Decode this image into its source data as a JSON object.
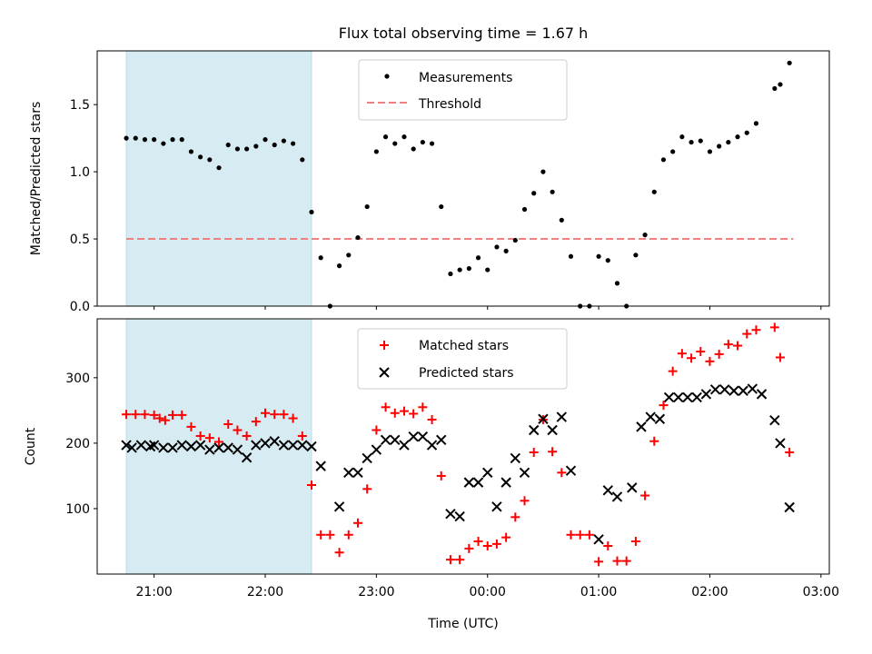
{
  "chart_data": [
    {
      "type": "scatter",
      "title": "Flux total observing time = 1.67 h",
      "ylabel": "Matched/Predicted stars",
      "xlim": [
        "20:30",
        "03:00"
      ],
      "ylim": [
        0,
        1.9
      ],
      "yticks": [
        "0.0",
        "0.5",
        "1.0",
        "1.5"
      ],
      "grid": false,
      "legend_position": "upper-center",
      "shaded_span": {
        "start": "20:45",
        "end": "22:25",
        "color": "#add8e6"
      },
      "series": [
        {
          "name": "Measurements",
          "marker": "dot",
          "color": "#000000",
          "x": [
            "20:45",
            "20:50",
            "20:55",
            "21:00",
            "21:05",
            "21:10",
            "21:15",
            "21:20",
            "21:25",
            "21:30",
            "21:35",
            "21:40",
            "21:45",
            "21:50",
            "21:55",
            "22:00",
            "22:05",
            "22:10",
            "22:15",
            "22:20",
            "22:25",
            "22:30",
            "22:35",
            "22:40",
            "22:45",
            "22:50",
            "22:55",
            "23:00",
            "23:05",
            "23:10",
            "23:15",
            "23:20",
            "23:25",
            "23:30",
            "23:35",
            "23:40",
            "23:45",
            "23:50",
            "23:55",
            "24:00",
            "24:05",
            "24:10",
            "24:15",
            "24:20",
            "24:25",
            "24:30",
            "24:35",
            "24:40",
            "24:45",
            "24:50",
            "24:55",
            "25:00",
            "25:05",
            "25:10",
            "25:15",
            "25:20",
            "25:25",
            "25:30",
            "25:35",
            "25:40",
            "25:45",
            "25:50",
            "25:55",
            "26:00",
            "26:05",
            "26:10",
            "26:15",
            "26:20",
            "26:25",
            "26:35",
            "26:38",
            "26:43"
          ],
          "y": [
            1.25,
            1.25,
            1.24,
            1.24,
            1.21,
            1.24,
            1.24,
            1.15,
            1.11,
            1.09,
            1.03,
            1.2,
            1.17,
            1.17,
            1.19,
            1.24,
            1.2,
            1.23,
            1.21,
            1.09,
            0.7,
            0.36,
            0.0,
            0.3,
            0.38,
            0.51,
            0.74,
            1.15,
            1.26,
            1.21,
            1.26,
            1.17,
            1.22,
            1.21,
            0.74,
            0.24,
            0.27,
            0.28,
            0.36,
            0.27,
            0.44,
            0.41,
            0.49,
            0.72,
            0.84,
            1.0,
            0.85,
            0.64,
            0.37,
            0.0,
            0.0,
            0.37,
            0.34,
            0.17,
            0.0,
            0.38,
            0.53,
            0.85,
            1.09,
            1.15,
            1.26,
            1.22,
            1.23,
            1.15,
            1.19,
            1.22,
            1.26,
            1.29,
            1.36,
            1.62,
            1.65,
            1.81
          ]
        },
        {
          "name": "Threshold",
          "style": "dashed",
          "color": "#f08080",
          "x": [
            "20:45",
            "26:45"
          ],
          "y": [
            0.5,
            0.5
          ]
        }
      ]
    },
    {
      "type": "scatter",
      "xlabel": "Time (UTC)",
      "ylabel": "Count",
      "xlim": [
        "20:30",
        "03:00"
      ],
      "ylim": [
        0,
        390
      ],
      "yticks": [
        "100",
        "200",
        "300"
      ],
      "xticks": [
        "21:00",
        "22:00",
        "23:00",
        "00:00",
        "01:00",
        "02:00",
        "03:00"
      ],
      "grid": false,
      "legend_position": "upper-center",
      "shaded_span": {
        "start": "20:45",
        "end": "22:25",
        "color": "#add8e6"
      },
      "series": [
        {
          "name": "Matched stars",
          "marker": "plus",
          "color": "#ff0000",
          "x": [
            "20:45",
            "20:50",
            "20:55",
            "21:00",
            "21:03",
            "21:06",
            "21:10",
            "21:15",
            "21:20",
            "21:25",
            "21:30",
            "21:35",
            "21:40",
            "21:45",
            "21:50",
            "21:55",
            "22:00",
            "22:05",
            "22:10",
            "22:15",
            "22:20",
            "22:25",
            "22:30",
            "22:35",
            "22:40",
            "22:45",
            "22:50",
            "22:55",
            "23:00",
            "23:05",
            "23:10",
            "23:15",
            "23:20",
            "23:25",
            "23:30",
            "23:35",
            "23:40",
            "23:45",
            "23:50",
            "23:55",
            "24:00",
            "24:05",
            "24:10",
            "24:15",
            "24:20",
            "24:25",
            "24:30",
            "24:35",
            "24:40",
            "24:45",
            "24:50",
            "24:55",
            "25:00",
            "25:05",
            "25:10",
            "25:15",
            "25:20",
            "25:25",
            "25:30",
            "25:35",
            "25:40",
            "25:45",
            "25:50",
            "25:55",
            "26:00",
            "26:05",
            "26:10",
            "26:15",
            "26:20",
            "26:25",
            "26:35",
            "26:38",
            "26:43"
          ],
          "y": [
            244,
            244,
            244,
            243,
            238,
            235,
            243,
            243,
            225,
            211,
            208,
            202,
            229,
            220,
            211,
            233,
            246,
            244,
            244,
            238,
            211,
            136,
            60,
            60,
            33,
            60,
            78,
            130,
            220,
            255,
            246,
            249,
            245,
            255,
            236,
            150,
            22,
            22,
            39,
            50,
            43,
            46,
            56,
            87,
            112,
            186,
            236,
            187,
            155,
            60,
            60,
            60,
            19,
            43,
            20,
            20,
            50,
            120,
            203,
            258,
            310,
            337,
            330,
            340,
            325,
            336,
            351,
            349,
            367,
            373,
            377,
            331,
            186
          ]
        },
        {
          "name": "Predicted stars",
          "marker": "x",
          "color": "#000000",
          "x": [
            "20:45",
            "20:48",
            "20:53",
            "20:58",
            "21:00",
            "21:05",
            "21:10",
            "21:15",
            "21:20",
            "21:25",
            "21:30",
            "21:35",
            "21:40",
            "21:45",
            "21:50",
            "21:55",
            "22:00",
            "22:05",
            "22:10",
            "22:15",
            "22:20",
            "22:25",
            "22:30",
            "22:40",
            "22:45",
            "22:50",
            "22:55",
            "23:00",
            "23:05",
            "23:10",
            "23:15",
            "23:20",
            "23:25",
            "23:30",
            "23:35",
            "23:40",
            "23:45",
            "23:50",
            "23:55",
            "24:00",
            "24:05",
            "24:10",
            "24:15",
            "24:20",
            "24:25",
            "24:30",
            "24:35",
            "24:40",
            "24:45",
            "25:00",
            "25:05",
            "25:10",
            "25:18",
            "25:23",
            "25:28",
            "25:33",
            "25:38",
            "25:43",
            "25:48",
            "25:53",
            "25:58",
            "26:03",
            "26:08",
            "26:13",
            "26:18",
            "26:23",
            "26:28",
            "26:35",
            "26:38",
            "26:43"
          ],
          "y": [
            197,
            193,
            197,
            195,
            197,
            193,
            193,
            197,
            195,
            197,
            190,
            193,
            193,
            190,
            178,
            197,
            200,
            203,
            197,
            197,
            197,
            195,
            165,
            103,
            155,
            155,
            177,
            190,
            205,
            205,
            197,
            210,
            210,
            197,
            205,
            92,
            88,
            140,
            140,
            155,
            103,
            140,
            177,
            155,
            220,
            237,
            220,
            240,
            158,
            53,
            128,
            118,
            132,
            225,
            240,
            237,
            270,
            270,
            270,
            270,
            275,
            282,
            282,
            280,
            280,
            283,
            275,
            235,
            200,
            102
          ]
        }
      ]
    }
  ]
}
